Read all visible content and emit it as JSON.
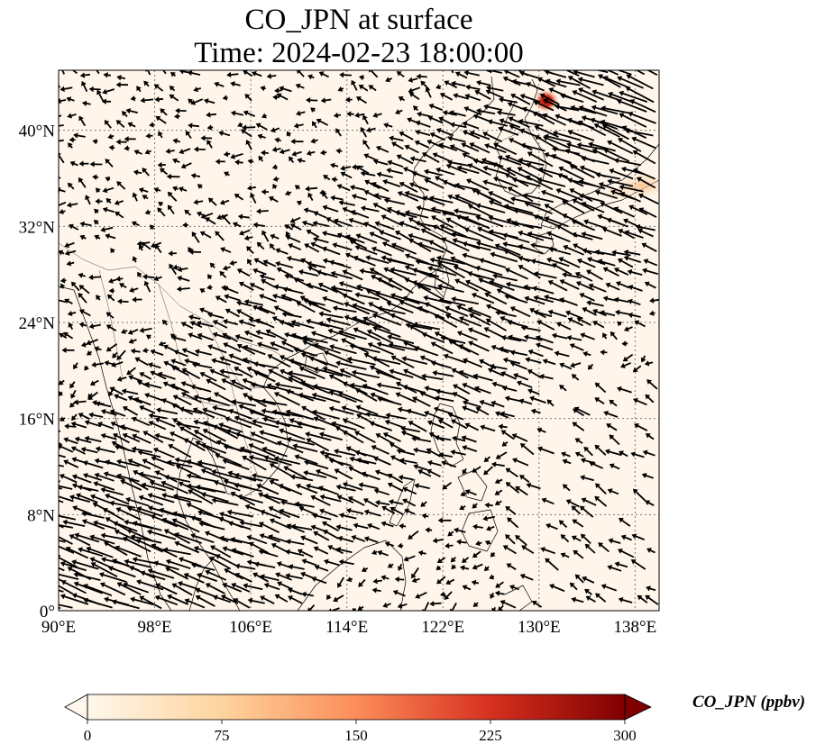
{
  "title": {
    "line1": "CO_JPN at surface",
    "line2": "Time: 2024-02-23 18:00:00"
  },
  "map": {
    "projection": "PlateCarree",
    "extent": {
      "lon_min": 90,
      "lon_max": 140,
      "lat_min": 0,
      "lat_max": 45
    },
    "gridlines": "dotted",
    "lon_ticks": [
      {
        "value": 90,
        "label": "90°E"
      },
      {
        "value": 98,
        "label": "98°E"
      },
      {
        "value": 106,
        "label": "106°E"
      },
      {
        "value": 114,
        "label": "114°E"
      },
      {
        "value": 122,
        "label": "122°E"
      },
      {
        "value": 130,
        "label": "130°E"
      },
      {
        "value": 138,
        "label": "138°E"
      }
    ],
    "lat_ticks": [
      {
        "value": 0,
        "label": "0°"
      },
      {
        "value": 8,
        "label": "8°N"
      },
      {
        "value": 16,
        "label": "16°N"
      },
      {
        "value": 24,
        "label": "24°N"
      },
      {
        "value": 32,
        "label": "32°N"
      },
      {
        "value": 40,
        "label": "40°N"
      }
    ],
    "background_color": "#fff5ea",
    "wind_vectors": "dense black quiver arrows; strong NE monsoon flow from Japan/East China Sea southwest over the South China Sea; weaker variable winds over land",
    "hotspots": [
      {
        "region": "Vladivostok / N Korea coast",
        "level": "high"
      },
      {
        "region": "Central Japan (Honshu)",
        "level": "moderate"
      }
    ]
  },
  "colorbar": {
    "label": "CO_JPN (ppbv)",
    "vmin": 0,
    "vmax": 300,
    "extend": "both",
    "cmap": "OrRd",
    "ticks": [
      {
        "value": 0,
        "label": "0"
      },
      {
        "value": 75,
        "label": "75"
      },
      {
        "value": 150,
        "label": "150"
      },
      {
        "value": 225,
        "label": "225"
      },
      {
        "value": 300,
        "label": "300"
      }
    ],
    "colors": [
      "#fff7ec",
      "#fdd49e",
      "#fc8d59",
      "#d7301f",
      "#7f0000"
    ]
  }
}
